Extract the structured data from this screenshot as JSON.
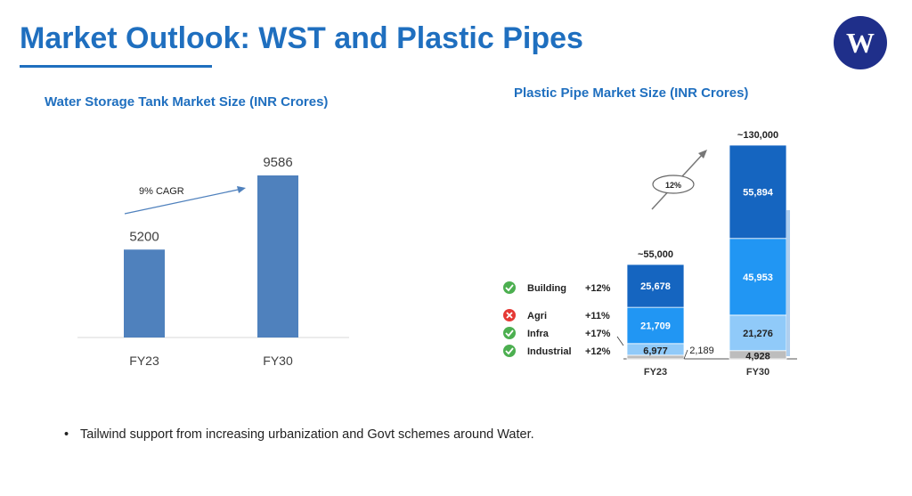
{
  "page": {
    "title": "Market Outlook: WST and Plastic Pipes",
    "logo_text": "W",
    "bullet": "Tailwind support from increasing urbanization and Govt schemes around Water."
  },
  "colors": {
    "title_blue": "#1f6fbf",
    "bar_blue": "#4f81bd",
    "pipe_building": "#1565c0",
    "pipe_agri": "#2196f3",
    "pipe_infra": "#90caf9",
    "pipe_industrial": "#bdbdbd",
    "check_green": "#4caf50",
    "cross_red": "#e53935",
    "logo_bg": "#1f2f8a"
  },
  "chart_data": [
    {
      "type": "bar",
      "title": "Water Storage Tank Market Size (INR Crores)",
      "categories": [
        "FY23",
        "FY30"
      ],
      "values": [
        5200,
        9586
      ],
      "value_labels": [
        "5200",
        "9586"
      ],
      "annotation": "9% CAGR",
      "ylim": [
        0,
        10000
      ],
      "grid": false
    },
    {
      "type": "bar",
      "stacked": true,
      "title": "Plastic Pipe Market Size (INR Crores)",
      "categories": [
        "FY23",
        "FY30"
      ],
      "totals": [
        "~55,000",
        "~130,000"
      ],
      "growth_annotation": "12%",
      "series": [
        {
          "name": "Industrial",
          "growth": "+12%",
          "outlook": "positive",
          "values": [
            2189,
            4928
          ],
          "labels": [
            "2,189",
            "4,928"
          ],
          "color_key": "pipe_industrial"
        },
        {
          "name": "Infra",
          "growth": "+17%",
          "outlook": "positive",
          "values": [
            6977,
            21276
          ],
          "labels": [
            "6,977",
            "21,276"
          ],
          "color_key": "pipe_infra"
        },
        {
          "name": "Agri",
          "growth": "+11%",
          "outlook": "negative",
          "values": [
            21709,
            45953
          ],
          "labels": [
            "21,709",
            "45,953"
          ],
          "color_key": "pipe_agri"
        },
        {
          "name": "Building",
          "growth": "+12%",
          "outlook": "positive",
          "values": [
            25678,
            55894
          ],
          "labels": [
            "25,678",
            "55,894"
          ],
          "color_key": "pipe_building"
        }
      ],
      "grid": false
    }
  ]
}
